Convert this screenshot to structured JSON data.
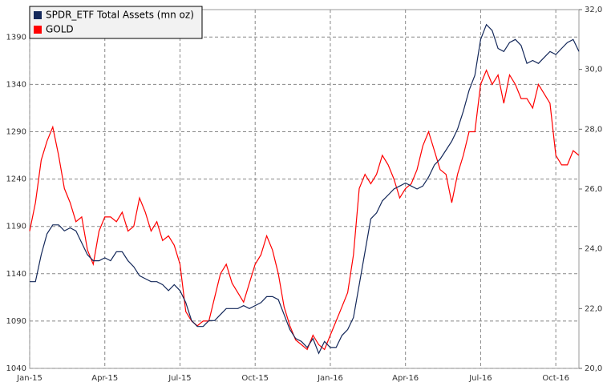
{
  "chart_data": {
    "type": "line",
    "categories": [
      "Jan-15",
      null,
      null,
      null,
      null,
      null,
      null,
      null,
      null,
      null,
      null,
      null,
      null,
      "Apr-15",
      null,
      null,
      null,
      null,
      null,
      null,
      null,
      null,
      null,
      null,
      null,
      null,
      "Jul-15",
      null,
      null,
      null,
      null,
      null,
      null,
      null,
      null,
      null,
      null,
      null,
      null,
      "Oct-15",
      null,
      null,
      null,
      null,
      null,
      null,
      null,
      null,
      null,
      null,
      null,
      null,
      "Jan-16",
      null,
      null,
      null,
      null,
      null,
      null,
      null,
      null,
      null,
      null,
      null,
      null,
      "Apr-16",
      null,
      null,
      null,
      null,
      null,
      null,
      null,
      null,
      null,
      null,
      null,
      null,
      "Jul-16",
      null,
      null,
      null,
      null,
      null,
      null,
      null,
      null,
      null,
      null,
      null,
      null,
      "Oct-16",
      null,
      null,
      null,
      null
    ],
    "series": [
      {
        "name": "SPDR_ETF Total Assets (mn oz)",
        "color": "#14285a",
        "axis": "y2",
        "values": [
          22.9,
          22.9,
          23.8,
          24.5,
          24.8,
          24.8,
          24.6,
          24.7,
          24.6,
          24.2,
          23.8,
          23.6,
          23.6,
          23.7,
          23.6,
          23.9,
          23.9,
          23.6,
          23.4,
          23.1,
          23.0,
          22.9,
          22.9,
          22.8,
          22.6,
          22.8,
          22.6,
          22.2,
          21.6,
          21.4,
          21.4,
          21.6,
          21.6,
          21.8,
          22.0,
          22.0,
          22.0,
          22.1,
          22.0,
          22.1,
          22.2,
          22.4,
          22.4,
          22.3,
          21.8,
          21.3,
          21.0,
          20.9,
          20.7,
          21.0,
          20.5,
          20.9,
          20.7,
          20.7,
          21.1,
          21.3,
          21.7,
          22.8,
          23.9,
          25.0,
          25.2,
          25.6,
          25.8,
          26.0,
          26.1,
          26.2,
          26.1,
          26.0,
          26.1,
          26.4,
          26.8,
          27.0,
          27.3,
          27.6,
          28.0,
          28.6,
          29.3,
          29.8,
          31.0,
          31.5,
          31.3,
          30.7,
          30.6,
          30.9,
          31.0,
          30.8,
          30.2,
          30.3,
          30.2,
          30.4,
          30.6,
          30.5,
          30.7,
          30.9,
          31.0,
          30.6
        ]
      },
      {
        "name": "GOLD",
        "color": "#ff0000",
        "values": [
          1185,
          1215,
          1260,
          1280,
          1295,
          1265,
          1230,
          1215,
          1195,
          1200,
          1165,
          1150,
          1185,
          1200,
          1200,
          1195,
          1205,
          1185,
          1190,
          1220,
          1205,
          1185,
          1195,
          1175,
          1180,
          1170,
          1150,
          1100,
          1090,
          1085,
          1090,
          1090,
          1115,
          1140,
          1150,
          1130,
          1120,
          1110,
          1130,
          1150,
          1160,
          1180,
          1165,
          1140,
          1105,
          1085,
          1070,
          1065,
          1060,
          1075,
          1065,
          1060,
          1075,
          1090,
          1105,
          1120,
          1160,
          1230,
          1245,
          1235,
          1245,
          1265,
          1255,
          1240,
          1220,
          1230,
          1235,
          1250,
          1275,
          1290,
          1270,
          1250,
          1245,
          1215,
          1245,
          1265,
          1290,
          1290,
          1340,
          1355,
          1340,
          1350,
          1320,
          1350,
          1340,
          1325,
          1325,
          1315,
          1340,
          1330,
          1320,
          1265,
          1255,
          1255,
          1270,
          1265
        ]
      }
    ],
    "ylim": [
      1040,
      1419
    ],
    "yticks": [
      1040,
      1090,
      1140,
      1190,
      1240,
      1290,
      1340,
      1390
    ],
    "y2lim": [
      20,
      32
    ],
    "y2ticks": [
      {
        "value": 20,
        "label": "20,0"
      },
      {
        "value": 22,
        "label": "22,0"
      },
      {
        "value": 24,
        "label": "24,0"
      },
      {
        "value": 26,
        "label": "26,0"
      },
      {
        "value": 28,
        "label": "28,0"
      },
      {
        "value": 30,
        "label": "30,0"
      },
      {
        "value": 32,
        "label": "32,0"
      }
    ],
    "grid": true,
    "legend": "top-left"
  }
}
